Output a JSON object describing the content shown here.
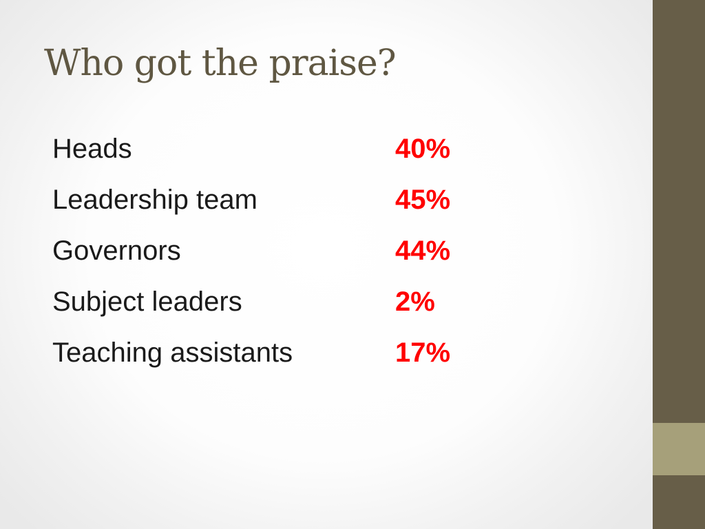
{
  "slide": {
    "title": "Who got the praise?"
  },
  "rows": [
    {
      "label": "Heads",
      "value": "40%"
    },
    {
      "label": "Leadership team",
      "value": "45%"
    },
    {
      "label": "Governors",
      "value": "44%"
    },
    {
      "label": "Subject leaders",
      "value": "2%"
    },
    {
      "label": "Teaching assistants",
      "value": "17%"
    }
  ],
  "colors": {
    "value": "#ff0000",
    "title": "#5f5742",
    "side_bar": "#675e48",
    "side_accent": "#a6a07a"
  }
}
